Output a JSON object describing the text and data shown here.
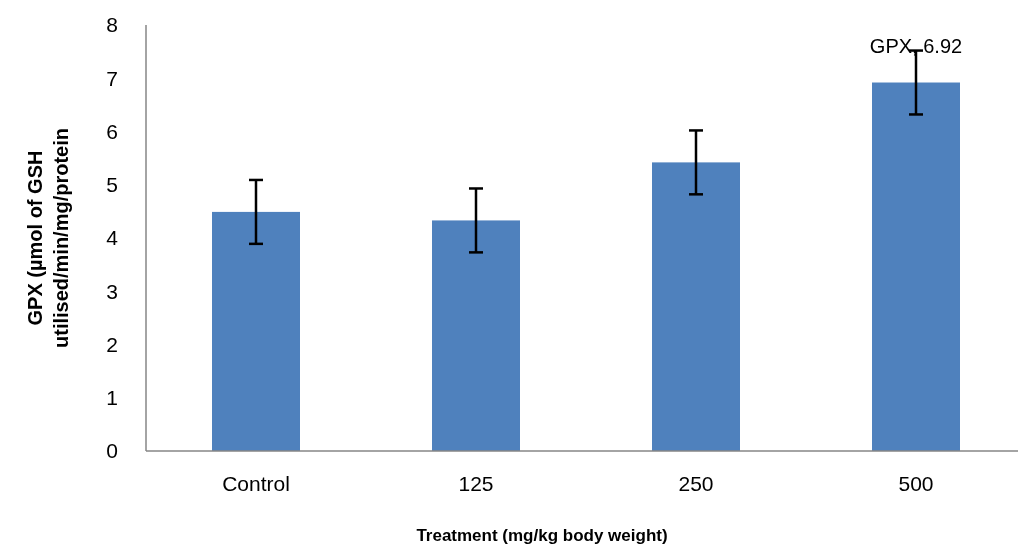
{
  "chart_data": {
    "type": "bar",
    "xlabel": "Treatment (mg/kg body weight)",
    "ylabel": "GPX (µmol of GSH utilised/min/mg/protein",
    "categories": [
      "Control",
      "125",
      "250",
      "500"
    ],
    "values": [
      4.49,
      4.33,
      5.42,
      6.92
    ],
    "errors": [
      0.6,
      0.6,
      0.6,
      0.6
    ],
    "value_labels": [
      null,
      null,
      null,
      "GPX, 6.92"
    ],
    "color": "#4f81bd",
    "ylim": [
      0,
      8
    ],
    "yticks": [
      0,
      1,
      2,
      3,
      4,
      5,
      6,
      7,
      8
    ]
  }
}
